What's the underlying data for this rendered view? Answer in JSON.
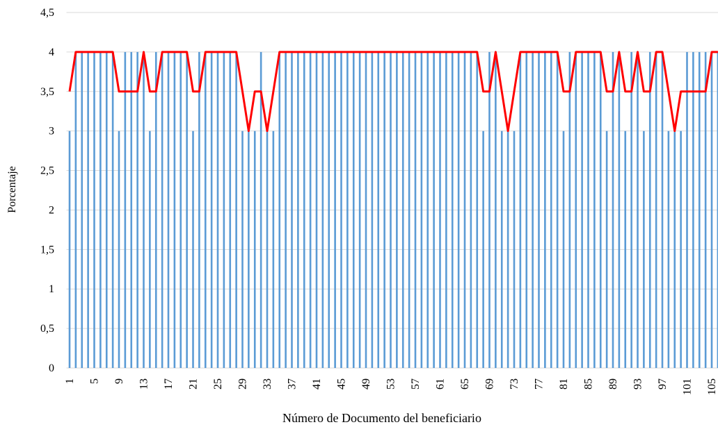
{
  "chart_data": {
    "type": "bar-line",
    "x_label": "Número de Documento del beneficiario",
    "y_label": "Porcentaje",
    "categories": [
      "1",
      null,
      null,
      null,
      "5",
      null,
      null,
      null,
      "9",
      null,
      null,
      null,
      "13",
      null,
      null,
      null,
      "17",
      null,
      null,
      null,
      "21",
      null,
      null,
      null,
      "25",
      null,
      null,
      null,
      "29",
      null,
      null,
      null,
      "33",
      null,
      null,
      null,
      "37",
      null,
      null,
      null,
      "41",
      null,
      null,
      null,
      "45",
      null,
      null,
      null,
      "49",
      null,
      null,
      null,
      "53",
      null,
      null,
      null,
      "57",
      null,
      null,
      null,
      "61",
      null,
      null,
      null,
      "65",
      null,
      null,
      null,
      "69",
      null,
      null,
      null,
      "73",
      null,
      null,
      null,
      "77",
      null,
      null,
      null,
      "81",
      null,
      null,
      null,
      "85",
      null,
      null,
      null,
      "89",
      null,
      null,
      null,
      "93",
      null,
      null,
      null,
      "97",
      null,
      null,
      null,
      "101",
      null,
      null,
      null,
      "105",
      null
    ],
    "series": [
      {
        "type": "bar",
        "color": "#5b9bd5",
        "values": [
          3,
          4,
          4,
          4,
          4,
          4,
          4,
          4,
          3,
          4,
          4,
          4,
          4,
          3,
          4,
          4,
          4,
          4,
          4,
          4,
          3,
          4,
          4,
          4,
          4,
          4,
          4,
          4,
          3,
          3,
          3,
          4,
          3,
          3,
          4,
          4,
          4,
          4,
          4,
          4,
          4,
          4,
          4,
          4,
          4,
          4,
          4,
          4,
          4,
          4,
          4,
          4,
          4,
          4,
          4,
          4,
          4,
          4,
          4,
          4,
          4,
          4,
          4,
          4,
          4,
          4,
          4,
          3,
          4,
          4,
          3,
          3,
          3,
          4,
          4,
          4,
          4,
          4,
          4,
          4,
          3,
          4,
          4,
          4,
          4,
          4,
          4,
          3,
          4,
          4,
          3,
          4,
          4,
          3,
          4,
          4,
          4,
          3,
          3,
          3,
          4,
          4,
          4,
          4,
          4,
          4
        ]
      },
      {
        "type": "line",
        "color": "#ff0000",
        "values": [
          3.5,
          4,
          4,
          4,
          4,
          4,
          4,
          4,
          3.5,
          3.5,
          3.5,
          3.5,
          4,
          3.5,
          3.5,
          4,
          4,
          4,
          4,
          4,
          3.5,
          3.5,
          4,
          4,
          4,
          4,
          4,
          4,
          3.5,
          3,
          3.5,
          3.5,
          3,
          3.5,
          4,
          4,
          4,
          4,
          4,
          4,
          4,
          4,
          4,
          4,
          4,
          4,
          4,
          4,
          4,
          4,
          4,
          4,
          4,
          4,
          4,
          4,
          4,
          4,
          4,
          4,
          4,
          4,
          4,
          4,
          4,
          4,
          4,
          3.5,
          3.5,
          4,
          3.5,
          3,
          3.5,
          4,
          4,
          4,
          4,
          4,
          4,
          4,
          3.5,
          3.5,
          4,
          4,
          4,
          4,
          4,
          3.5,
          3.5,
          4,
          3.5,
          3.5,
          4,
          3.5,
          3.5,
          4,
          4,
          3.5,
          3,
          3.5,
          3.5,
          3.5,
          3.5,
          3.5,
          4,
          4
        ]
      }
    ],
    "ylim": [
      0,
      4.5
    ],
    "yticks": [
      0,
      {
        "value": 0.5,
        "label": "0,5"
      },
      1,
      {
        "value": 1.5,
        "label": "1,5"
      },
      2,
      {
        "value": 2.5,
        "label": "2,5"
      },
      3,
      {
        "value": 3.5,
        "label": "3,5"
      },
      4,
      {
        "value": 4.5,
        "label": "4,5"
      }
    ],
    "grid": true
  }
}
